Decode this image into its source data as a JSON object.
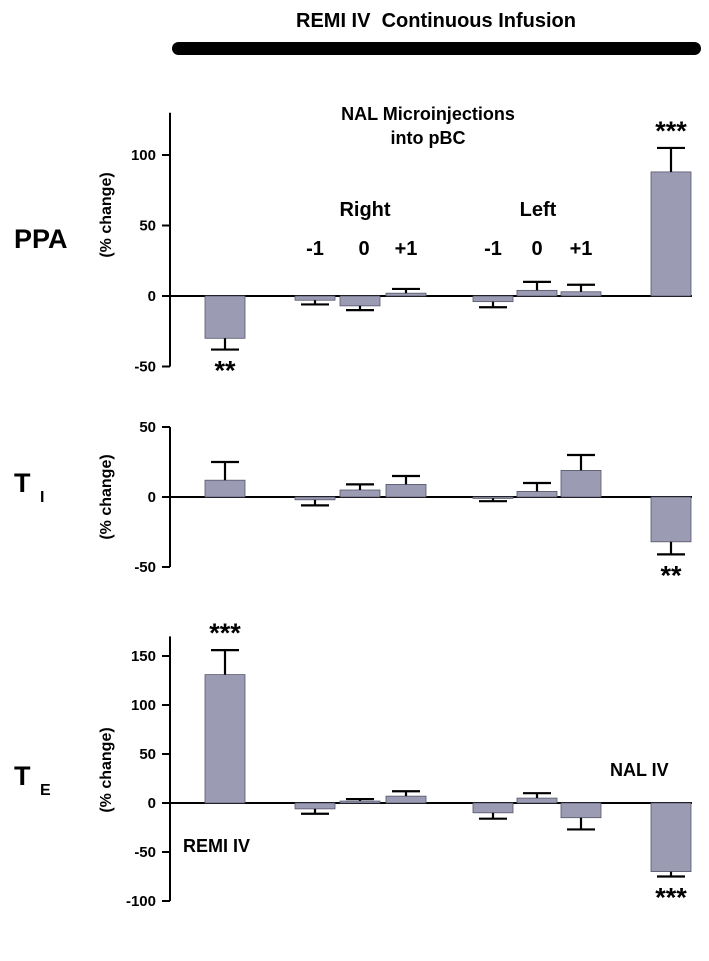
{
  "banner": "REMI IV  Continuous Infusion",
  "chart_data": [
    {
      "type": "bar",
      "panel_label": "PPA",
      "panel_sublabel": "",
      "ylabel": "(% change)",
      "ylim": [
        -50,
        130
      ],
      "yticks": [
        -50,
        0,
        50,
        100
      ],
      "categories": [
        "REMI IV",
        "Right -1",
        "Right 0",
        "Right +1",
        "Left -1",
        "Left 0",
        "Left +1",
        "NAL IV"
      ],
      "values": [
        -30,
        -3,
        -7,
        2,
        -4,
        4,
        3,
        88
      ],
      "errors": [
        8,
        3,
        3,
        3,
        4,
        6,
        5,
        17
      ],
      "significance": [
        "**",
        "",
        "",
        "",
        "",
        "",
        "",
        "***"
      ],
      "title": "NAL Microinjections\ninto pBC",
      "group_labels": [
        "Right",
        "Left"
      ],
      "position_labels": [
        "-1",
        "0",
        "+1",
        "-1",
        "0",
        "+1"
      ]
    },
    {
      "type": "bar",
      "panel_label": "T",
      "panel_sublabel": "I",
      "ylabel": "(% change)",
      "ylim": [
        -50,
        50
      ],
      "yticks": [
        -50,
        0,
        50
      ],
      "categories": [
        "REMI IV",
        "Right -1",
        "Right 0",
        "Right +1",
        "Left -1",
        "Left 0",
        "Left +1",
        "NAL IV"
      ],
      "values": [
        12,
        -2,
        5,
        9,
        -1,
        4,
        19,
        -32
      ],
      "errors": [
        13,
        4,
        4,
        6,
        2,
        6,
        11,
        9
      ],
      "significance": [
        "",
        "",
        "",
        "",
        "",
        "",
        "",
        "**"
      ]
    },
    {
      "type": "bar",
      "panel_label": "T",
      "panel_sublabel": "E",
      "ylabel": "(% change)",
      "ylim": [
        -100,
        170
      ],
      "yticks": [
        -100,
        -50,
        0,
        50,
        100,
        150
      ],
      "categories": [
        "REMI IV",
        "Right -1",
        "Right 0",
        "Right +1",
        "Left -1",
        "Left 0",
        "Left +1",
        "NAL IV"
      ],
      "values": [
        131,
        -6,
        2,
        7,
        -10,
        5,
        -15,
        -70
      ],
      "errors": [
        25,
        5,
        2,
        5,
        6,
        5,
        12,
        5
      ],
      "significance": [
        "***",
        "",
        "",
        "",
        "",
        "",
        "",
        "***"
      ],
      "annotations": [
        "REMI IV",
        "NAL IV"
      ]
    }
  ]
}
